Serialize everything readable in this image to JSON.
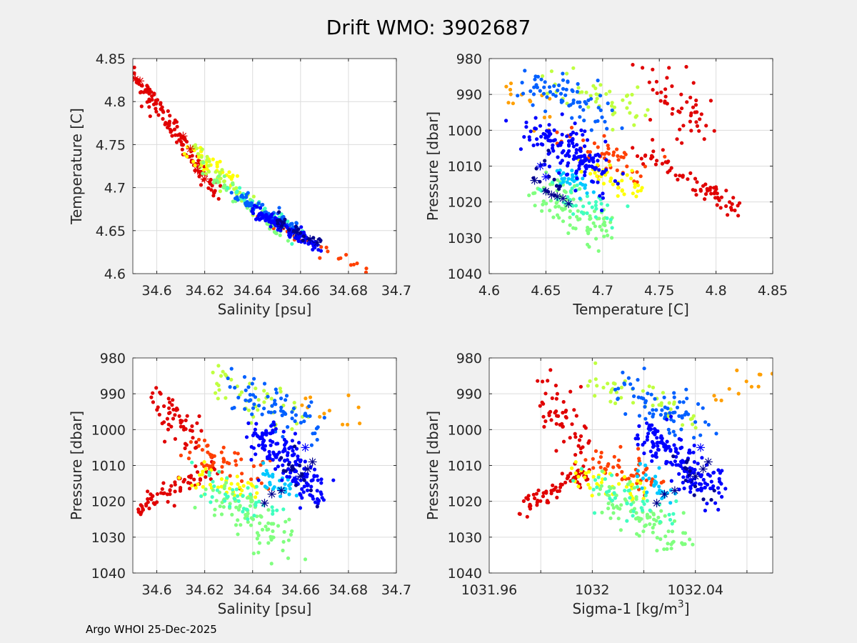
{
  "figure": {
    "title": "Drift WMO: 3902687",
    "footer": "Argo WHOI 25-Dec-2025"
  },
  "colors": {
    "background": "#f0f0f0",
    "axes_bg": "#ffffff",
    "grid": "#dcdcdc",
    "axis": "#262626",
    "jet": [
      "#00008f",
      "#0000ff",
      "#0060ff",
      "#00c8ff",
      "#40ffbf",
      "#80ff7f",
      "#bfff40",
      "#ffff00",
      "#ff9f00",
      "#ff4000",
      "#e00000"
    ]
  },
  "chart_data": [
    {
      "type": "scatter",
      "xlabel": "Salinity [psu]",
      "ylabel": "Temperature [C]",
      "xlim": [
        34.59,
        34.7
      ],
      "ylim": [
        4.6,
        4.85
      ],
      "xticks": [
        "34.6",
        "34.62",
        "34.64",
        "34.66",
        "34.68",
        "34.7"
      ],
      "yticks": [
        "4.6",
        "4.65",
        "4.7",
        "4.75",
        "4.8",
        "4.85"
      ],
      "grid": true,
      "note": "points colored by profile (jet colormap, dark blue = early, red = late); * = profile markers",
      "clusters": [
        {
          "c": 10,
          "x": [
            34.59,
            34.625
          ],
          "y": [
            4.835,
            4.695
          ],
          "n": 130,
          "sx": 0.0012,
          "sy": 0.006
        },
        {
          "c": 9,
          "x": [
            34.64,
            34.688
          ],
          "y": [
            4.67,
            4.605
          ],
          "n": 25,
          "sx": 0.0006,
          "sy": 0.003
        },
        {
          "c": 7,
          "x": [
            34.612,
            34.632
          ],
          "y": [
            4.745,
            4.705
          ],
          "n": 40,
          "sx": 0.0012,
          "sy": 0.006
        },
        {
          "c": 6,
          "x": [
            34.615,
            34.64
          ],
          "y": [
            4.745,
            4.68
          ],
          "n": 40,
          "sx": 0.0012,
          "sy": 0.006
        },
        {
          "c": 5,
          "x": [
            34.62,
            34.655
          ],
          "y": [
            4.72,
            4.64
          ],
          "n": 50,
          "sx": 0.0012,
          "sy": 0.005
        },
        {
          "c": 4,
          "x": [
            34.63,
            34.66
          ],
          "y": [
            4.7,
            4.645
          ],
          "n": 40,
          "sx": 0.001,
          "sy": 0.004
        },
        {
          "c": 2,
          "x": [
            34.63,
            34.66
          ],
          "y": [
            4.695,
            4.65
          ],
          "n": 60,
          "sx": 0.001,
          "sy": 0.004
        },
        {
          "c": 1,
          "x": [
            34.64,
            34.668
          ],
          "y": [
            4.675,
            4.63
          ],
          "n": 120,
          "sx": 0.001,
          "sy": 0.004
        },
        {
          "c": 0,
          "x": [
            34.65,
            34.668
          ],
          "y": [
            4.665,
            4.635
          ],
          "n": 20,
          "sx": 0.0008,
          "sy": 0.003
        }
      ],
      "stars": [
        {
          "c": 10,
          "x": 34.59,
          "y": 4.828
        },
        {
          "c": 10,
          "x": 34.591,
          "y": 4.826
        },
        {
          "c": 10,
          "x": 34.593,
          "y": 4.824
        },
        {
          "c": 10,
          "x": 34.611,
          "y": 4.76
        },
        {
          "c": 10,
          "x": 34.614,
          "y": 4.745
        },
        {
          "c": 10,
          "x": 34.617,
          "y": 4.72
        },
        {
          "c": 10,
          "x": 34.62,
          "y": 4.71
        },
        {
          "c": 0,
          "x": 34.652,
          "y": 4.655
        },
        {
          "c": 0,
          "x": 34.658,
          "y": 4.648
        },
        {
          "c": 0,
          "x": 34.664,
          "y": 4.64
        },
        {
          "c": 0,
          "x": 34.667,
          "y": 4.636
        }
      ]
    },
    {
      "type": "scatter",
      "xlabel": "Temperature [C]",
      "ylabel": "Pressure [dbar]",
      "xlim": [
        4.6,
        4.85
      ],
      "ylim": [
        980,
        1040
      ],
      "yreverse": true,
      "xticks": [
        "4.6",
        "4.65",
        "4.7",
        "4.75",
        "4.8",
        "4.85"
      ],
      "yticks": [
        "980",
        "990",
        "1000",
        "1010",
        "1020",
        "1030",
        "1040"
      ],
      "grid": true,
      "clusters": [
        {
          "c": 10,
          "x": [
            4.735,
            4.82
          ],
          "y": [
            1007,
            1022
          ],
          "n": 70,
          "sx": 0.006,
          "sy": 1.5
        },
        {
          "c": 10,
          "x": [
            4.745,
            4.79
          ],
          "y": [
            985,
            1000
          ],
          "n": 50,
          "sx": 0.01,
          "sy": 3
        },
        {
          "c": 9,
          "x": [
            4.675,
            4.73
          ],
          "y": [
            1003,
            1012
          ],
          "n": 50,
          "sx": 0.012,
          "sy": 2.5
        },
        {
          "c": 8,
          "x": [
            4.61,
            4.66
          ],
          "y": [
            989,
            1000
          ],
          "n": 15,
          "sx": 0.008,
          "sy": 2.5
        },
        {
          "c": 7,
          "x": [
            4.69,
            4.735
          ],
          "y": [
            1011,
            1017
          ],
          "n": 40,
          "sx": 0.008,
          "sy": 1.8
        },
        {
          "c": 6,
          "x": [
            4.66,
            4.73
          ],
          "y": [
            985,
            995
          ],
          "n": 45,
          "sx": 0.012,
          "sy": 2.5
        },
        {
          "c": 5,
          "x": [
            4.645,
            4.705
          ],
          "y": [
            1017,
            1030
          ],
          "n": 90,
          "sx": 0.01,
          "sy": 3
        },
        {
          "c": 4,
          "x": [
            4.655,
            4.71
          ],
          "y": [
            1015,
            1024
          ],
          "n": 40,
          "sx": 0.01,
          "sy": 2.5
        },
        {
          "c": 3,
          "x": [
            4.66,
            4.685
          ],
          "y": [
            1011,
            1016
          ],
          "n": 30,
          "sx": 0.006,
          "sy": 1.5
        },
        {
          "c": 2,
          "x": [
            4.64,
            4.7
          ],
          "y": [
            986,
            996
          ],
          "n": 70,
          "sx": 0.012,
          "sy": 2.5
        },
        {
          "c": 1,
          "x": [
            4.638,
            4.7
          ],
          "y": [
            1000,
            1012
          ],
          "n": 150,
          "sx": 0.01,
          "sy": 3
        },
        {
          "c": 0,
          "x": [
            4.64,
            4.665
          ],
          "y": [
            1010,
            1019
          ],
          "n": 15,
          "sx": 0.004,
          "sy": 2
        }
      ],
      "stars": [
        {
          "c": 0,
          "x": 4.64,
          "y": 1014
        },
        {
          "c": 0,
          "x": 4.65,
          "y": 1017
        },
        {
          "c": 0,
          "x": 4.655,
          "y": 1018
        },
        {
          "c": 0,
          "x": 4.66,
          "y": 1018.5
        },
        {
          "c": 0,
          "x": 4.665,
          "y": 1019
        },
        {
          "c": 0,
          "x": 4.67,
          "y": 1020.5
        },
        {
          "c": 1,
          "x": 4.645,
          "y": 1010
        },
        {
          "c": 1,
          "x": 4.65,
          "y": 1013
        }
      ]
    },
    {
      "type": "scatter",
      "xlabel": "Salinity [psu]",
      "ylabel": "Pressure [dbar]",
      "xlim": [
        34.59,
        34.7
      ],
      "ylim": [
        980,
        1040
      ],
      "yreverse": true,
      "xticks": [
        "34.6",
        "34.62",
        "34.64",
        "34.66",
        "34.68",
        "34.7"
      ],
      "yticks": [
        "980",
        "990",
        "1000",
        "1010",
        "1020",
        "1030",
        "1040"
      ],
      "grid": true,
      "clusters": [
        {
          "c": 10,
          "x": [
            34.592,
            34.625
          ],
          "y": [
            1022,
            1010
          ],
          "n": 70,
          "sx": 0.002,
          "sy": 1.5
        },
        {
          "c": 10,
          "x": [
            34.6,
            34.615
          ],
          "y": [
            990,
            1003
          ],
          "n": 55,
          "sx": 0.003,
          "sy": 3
        },
        {
          "c": 9,
          "x": [
            34.615,
            34.645
          ],
          "y": [
            1005,
            1015
          ],
          "n": 50,
          "sx": 0.004,
          "sy": 2.5
        },
        {
          "c": 8,
          "x": [
            34.66,
            34.685
          ],
          "y": [
            992,
            998
          ],
          "n": 12,
          "sx": 0.003,
          "sy": 2
        },
        {
          "c": 7,
          "x": [
            34.615,
            34.645
          ],
          "y": [
            1012,
            1018
          ],
          "n": 40,
          "sx": 0.003,
          "sy": 1.8
        },
        {
          "c": 6,
          "x": [
            34.62,
            34.66
          ],
          "y": [
            985,
            997
          ],
          "n": 45,
          "sx": 0.004,
          "sy": 2.5
        },
        {
          "c": 5,
          "x": [
            34.625,
            34.655
          ],
          "y": [
            1018,
            1032
          ],
          "n": 90,
          "sx": 0.004,
          "sy": 3
        },
        {
          "c": 4,
          "x": [
            34.62,
            34.65
          ],
          "y": [
            1014,
            1025
          ],
          "n": 40,
          "sx": 0.004,
          "sy": 2.5
        },
        {
          "c": 3,
          "x": [
            34.643,
            34.655
          ],
          "y": [
            1012,
            1018
          ],
          "n": 30,
          "sx": 0.002,
          "sy": 1.5
        },
        {
          "c": 2,
          "x": [
            34.63,
            34.665
          ],
          "y": [
            987,
            1000
          ],
          "n": 70,
          "sx": 0.004,
          "sy": 3
        },
        {
          "c": 1,
          "x": [
            34.64,
            34.668
          ],
          "y": [
            1000,
            1018
          ],
          "n": 160,
          "sx": 0.003,
          "sy": 3
        },
        {
          "c": 0,
          "x": [
            34.65,
            34.667
          ],
          "y": [
            1008,
            1019
          ],
          "n": 15,
          "sx": 0.002,
          "sy": 2
        }
      ],
      "stars": [
        {
          "c": 0,
          "x": 34.645,
          "y": 1020.5
        },
        {
          "c": 0,
          "x": 34.648,
          "y": 1018
        },
        {
          "c": 0,
          "x": 34.652,
          "y": 1017
        },
        {
          "c": 0,
          "x": 34.66,
          "y": 1013
        },
        {
          "c": 0,
          "x": 34.665,
          "y": 1009
        },
        {
          "c": 0,
          "x": 34.663,
          "y": 1011
        },
        {
          "c": 1,
          "x": 34.662,
          "y": 1005
        },
        {
          "c": 1,
          "x": 34.658,
          "y": 1014
        }
      ]
    },
    {
      "type": "scatter",
      "xlabel": "Sigma-1 [kg/m",
      "xlabel_sup": "3",
      "xlabel_end": "]",
      "ylabel": "Pressure [dbar]",
      "xlim": [
        1031.96,
        1032.07
      ],
      "ylim": [
        980,
        1040
      ],
      "yreverse": true,
      "xticks": [
        "1031.96",
        "1032",
        "1032.04"
      ],
      "xtick_values": [
        1031.96,
        1032,
        1032.04
      ],
      "minor_xticks": [
        1031.98,
        1032.02,
        1032.06
      ],
      "yticks": [
        "980",
        "990",
        "1000",
        "1010",
        "1020",
        "1030",
        "1040"
      ],
      "grid": true,
      "clusters": [
        {
          "c": 10,
          "x": [
            1031.973,
            1032.0
          ],
          "y": [
            1022,
            1010
          ],
          "n": 70,
          "sx": 0.002,
          "sy": 1.5
        },
        {
          "c": 10,
          "x": [
            1031.98,
            1031.995
          ],
          "y": [
            990,
            1003
          ],
          "n": 55,
          "sx": 0.003,
          "sy": 3
        },
        {
          "c": 9,
          "x": [
            1031.995,
            1032.025
          ],
          "y": [
            1005,
            1015
          ],
          "n": 50,
          "sx": 0.004,
          "sy": 2.5
        },
        {
          "c": 8,
          "x": [
            1032.045,
            1032.068
          ],
          "y": [
            992,
            985
          ],
          "n": 12,
          "sx": 0.003,
          "sy": 2
        },
        {
          "c": 7,
          "x": [
            1031.99,
            1032.02
          ],
          "y": [
            1012,
            1018
          ],
          "n": 40,
          "sx": 0.003,
          "sy": 1.8
        },
        {
          "c": 6,
          "x": [
            1032.0,
            1032.04
          ],
          "y": [
            985,
            997
          ],
          "n": 45,
          "sx": 0.004,
          "sy": 2.5
        },
        {
          "c": 5,
          "x": [
            1032.005,
            1032.035
          ],
          "y": [
            1018,
            1032
          ],
          "n": 90,
          "sx": 0.004,
          "sy": 3
        },
        {
          "c": 4,
          "x": [
            1032.0,
            1032.03
          ],
          "y": [
            1014,
            1025
          ],
          "n": 40,
          "sx": 0.004,
          "sy": 2.5
        },
        {
          "c": 3,
          "x": [
            1032.02,
            1032.03
          ],
          "y": [
            1012,
            1018
          ],
          "n": 30,
          "sx": 0.002,
          "sy": 1.5
        },
        {
          "c": 2,
          "x": [
            1032.01,
            1032.045
          ],
          "y": [
            987,
            1000
          ],
          "n": 70,
          "sx": 0.004,
          "sy": 3
        },
        {
          "c": 1,
          "x": [
            1032.02,
            1032.048
          ],
          "y": [
            1000,
            1018
          ],
          "n": 160,
          "sx": 0.003,
          "sy": 3
        },
        {
          "c": 0,
          "x": [
            1032.03,
            1032.047
          ],
          "y": [
            1008,
            1019
          ],
          "n": 15,
          "sx": 0.002,
          "sy": 2
        }
      ],
      "stars": [
        {
          "c": 0,
          "x": 1032.025,
          "y": 1020.5
        },
        {
          "c": 0,
          "x": 1032.028,
          "y": 1018
        },
        {
          "c": 0,
          "x": 1032.032,
          "y": 1017
        },
        {
          "c": 0,
          "x": 1032.04,
          "y": 1013
        },
        {
          "c": 0,
          "x": 1032.045,
          "y": 1009
        },
        {
          "c": 0,
          "x": 1032.043,
          "y": 1011
        },
        {
          "c": 1,
          "x": 1032.042,
          "y": 1005
        },
        {
          "c": 1,
          "x": 1032.038,
          "y": 1014
        }
      ]
    }
  ]
}
